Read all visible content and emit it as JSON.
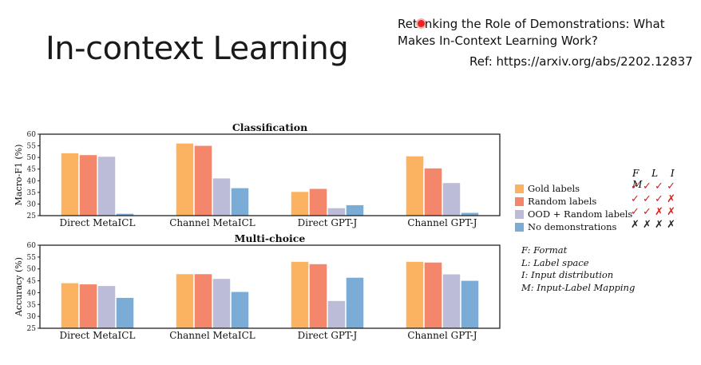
{
  "slide": {
    "title": "In-context Learning",
    "paper_title_pre": "Ret",
    "paper_title_post": "nking the Role of Demonstrations: What Makes In-Context Learning Work?",
    "ref": "Ref: https://arxiv.org/abs/2202.12837"
  },
  "legend": {
    "items": [
      {
        "label": "Gold labels",
        "color": "#fbb361",
        "marks": "✓ ✓ ✓ ✓",
        "mark_color": "#d62020"
      },
      {
        "label": "Random labels",
        "color": "#f4876b",
        "marks": "✓ ✓ ✓ ✗",
        "mark_color": "#d62020"
      },
      {
        "label": "OOD + Random labels",
        "color": "#bcbcd8",
        "marks": "✓ ✓ ✗ ✗",
        "mark_color": "#d62020"
      },
      {
        "label": "No demonstrations",
        "color": "#7aacd6",
        "marks": "✗ ✗ ✗ ✗",
        "mark_color": "#222222"
      }
    ],
    "columns": "F L I M",
    "definitions": [
      "F: Format",
      "L: Label space",
      "I: Input distribution",
      "M: Input-Label Mapping"
    ]
  },
  "chart_data": [
    {
      "type": "bar",
      "title": "Classification",
      "ylabel": "Macro-F1 (%)",
      "ylim": [
        25,
        60
      ],
      "yticks": [
        "25",
        "30",
        "35",
        "40",
        "45",
        "50",
        "55",
        "60"
      ],
      "categories": [
        "Direct MetaICL",
        "Channel MetaICL",
        "Direct GPT-J",
        "Channel GPT-J"
      ],
      "series": [
        {
          "name": "Gold labels",
          "values": [
            51.8,
            56.0,
            35.2,
            50.5
          ]
        },
        {
          "name": "Random labels",
          "values": [
            51.0,
            55.0,
            36.5,
            45.3
          ]
        },
        {
          "name": "OOD + Random labels",
          "values": [
            50.3,
            41.0,
            28.2,
            39.0
          ]
        },
        {
          "name": "No demonstrations",
          "values": [
            25.8,
            36.8,
            29.5,
            26.2
          ]
        }
      ]
    },
    {
      "type": "bar",
      "title": "Multi-choice",
      "ylabel": "Accuracy (%)",
      "ylim": [
        25,
        60
      ],
      "yticks": [
        "25",
        "30",
        "35",
        "40",
        "45",
        "50",
        "55",
        "60"
      ],
      "categories": [
        "Direct MetaICL",
        "Channel MetaICL",
        "Direct GPT-J",
        "Channel GPT-J"
      ],
      "series": [
        {
          "name": "Gold labels",
          "values": [
            44.0,
            47.8,
            53.0,
            53.0
          ]
        },
        {
          "name": "Random labels",
          "values": [
            43.5,
            47.8,
            52.0,
            52.7
          ]
        },
        {
          "name": "OOD + Random labels",
          "values": [
            42.8,
            45.8,
            36.5,
            47.7
          ]
        },
        {
          "name": "No demonstrations",
          "values": [
            37.8,
            40.3,
            46.3,
            45.0
          ]
        }
      ]
    }
  ]
}
